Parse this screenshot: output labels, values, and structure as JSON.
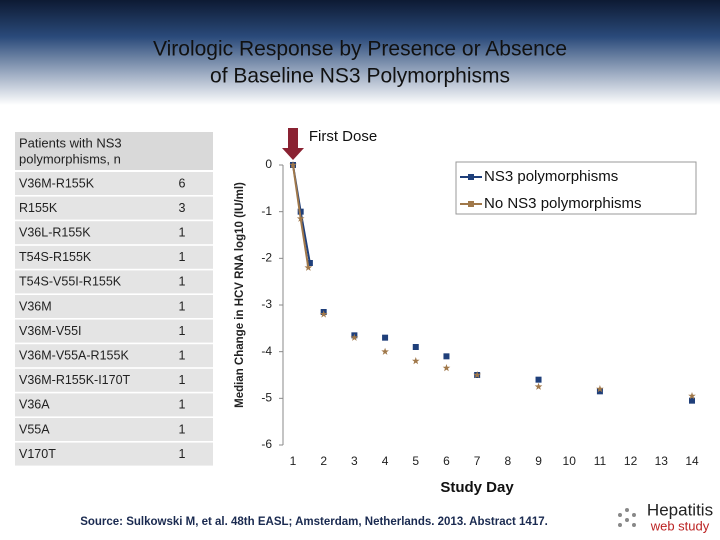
{
  "title": [
    "Virologic Response by Presence or Absence",
    "of Baseline NS3 Polymorphisms"
  ],
  "table": {
    "header": [
      "Patients with NS3",
      "polymorphisms, n"
    ],
    "rows": [
      [
        "V36M-R155K",
        6
      ],
      [
        "R155K",
        3
      ],
      [
        "V36L-R155K",
        1
      ],
      [
        "T54S-R155K",
        1
      ],
      [
        "T54S-V55I-R155K",
        1
      ],
      [
        "V36M",
        1
      ],
      [
        "V36M-V55I",
        1
      ],
      [
        "V36M-V55A-R155K",
        1
      ],
      [
        "V36M-R155K-I170T",
        1
      ],
      [
        "V36A",
        1
      ],
      [
        "V55A",
        1
      ],
      [
        "V170T",
        1
      ]
    ]
  },
  "chart_data": {
    "type": "scatter",
    "x_label": "Study Day",
    "y_label": "Median Change in HCV RNA log10 (IU/ml)",
    "annotation": "First Dose",
    "xlim": [
      1,
      14
    ],
    "xticks": [
      1,
      2,
      3,
      4,
      5,
      6,
      7,
      8,
      9,
      10,
      11,
      12,
      13,
      14
    ],
    "ylim": [
      -6,
      0
    ],
    "yticks": [
      0,
      -1,
      -2,
      -3,
      -4,
      -5,
      -6
    ],
    "legend": "upper right",
    "series": [
      {
        "name": "NS3 polymorphisms",
        "color": "#1f3f7a",
        "marker": "square",
        "x": [
          1,
          1.25,
          1.55,
          2,
          3,
          4,
          5,
          6,
          7,
          9,
          11,
          14
        ],
        "values": [
          0,
          -1.0,
          -2.1,
          -3.15,
          -3.65,
          -3.7,
          -3.9,
          -4.1,
          -4.5,
          -4.6,
          -4.85,
          -5.05
        ]
      },
      {
        "name": "No NS3 polymorphisms",
        "color": "#a0784a",
        "marker": "star",
        "x": [
          1,
          1.25,
          1.5,
          2,
          3,
          4,
          5,
          6,
          7,
          9,
          11,
          14
        ],
        "values": [
          0,
          -1.15,
          -2.2,
          -3.2,
          -3.7,
          -4.0,
          -4.2,
          -4.35,
          -4.5,
          -4.75,
          -4.8,
          -4.95
        ]
      }
    ]
  },
  "source": "Source: Sulkowski M, et al. 48th EASL; Amsterdam, Netherlands. 2013. Abstract 1417.",
  "logo": [
    "Hepatitis",
    "web study"
  ]
}
